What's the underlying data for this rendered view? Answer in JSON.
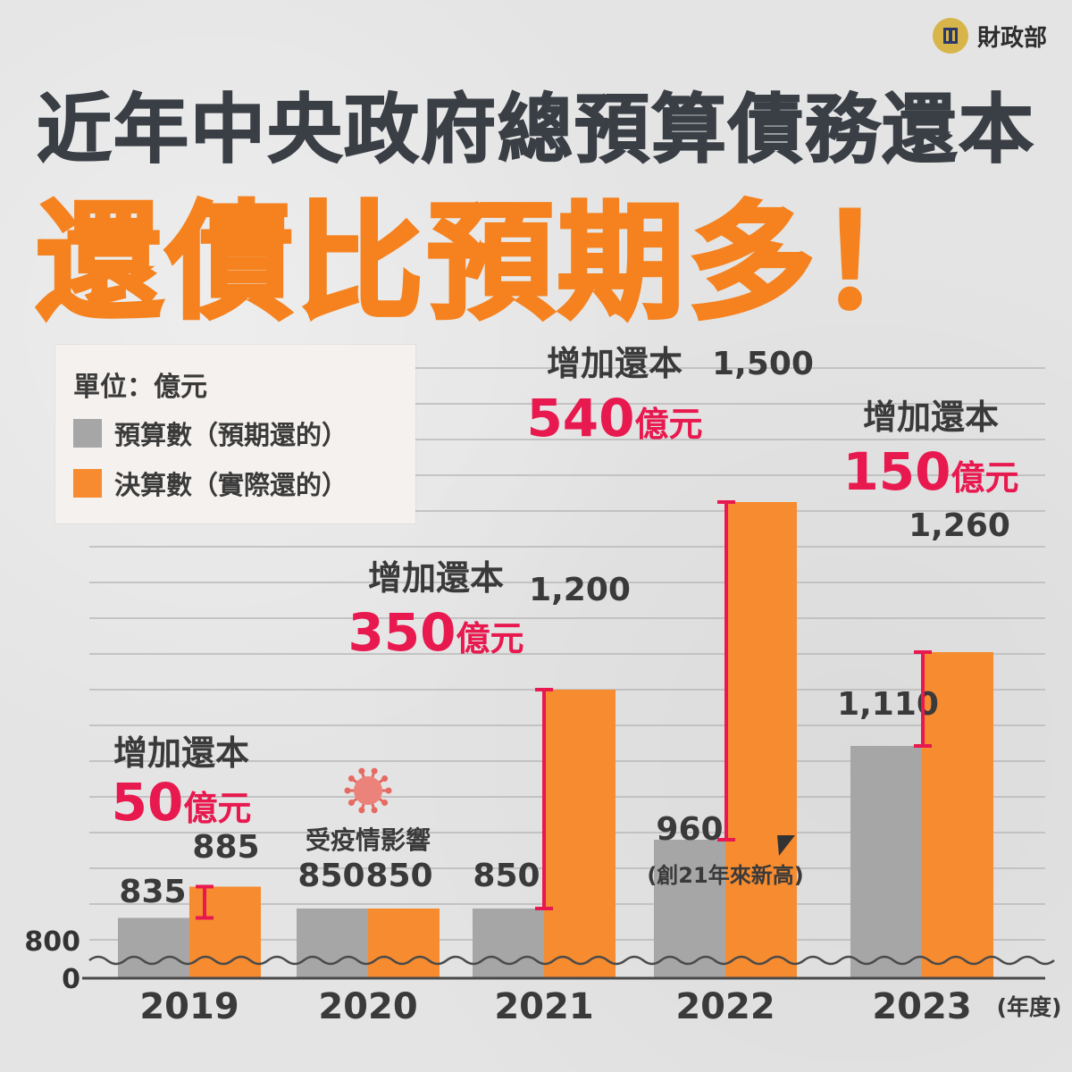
{
  "header": {
    "ministry": "財政部",
    "title": "近年中央政府總預算債務還本",
    "headline": "還債比預期多！"
  },
  "legend": {
    "unit": "單位：億元",
    "items": [
      {
        "label": "預算數（預期還的）",
        "color": "#a6a6a6"
      },
      {
        "label": "決算數（實際還的）",
        "color": "#f68b30"
      }
    ]
  },
  "colors": {
    "budget": "#a6a6a6",
    "actual": "#f68b30",
    "accent": "#f5821f",
    "highlight": "#e8194f",
    "axis": "#4a4a4a"
  },
  "chart_data": {
    "type": "bar",
    "categories": [
      "2019",
      "2020",
      "2021",
      "2022",
      "2023"
    ],
    "x_unit": "(年度)",
    "y_ticks": [
      "0",
      "800"
    ],
    "axis_break": true,
    "series": [
      {
        "name": "預算數（預期還的）",
        "values": [
          835,
          850,
          850,
          960,
          1110
        ],
        "labels": [
          "835",
          "850",
          "850",
          "960",
          "1,110"
        ]
      },
      {
        "name": "決算數（實際還的）",
        "values": [
          885,
          850,
          1200,
          1500,
          1260
        ],
        "labels": [
          "885",
          "850",
          "1,200",
          "1,500",
          "1,260"
        ]
      }
    ],
    "annotations": [
      {
        "year": "2019",
        "title": "增加還本",
        "amount": "50",
        "unit": "億元"
      },
      {
        "year": "2020",
        "note": "受疫情影響",
        "icon": "virus-icon"
      },
      {
        "year": "2021",
        "title": "增加還本",
        "amount": "350",
        "unit": "億元"
      },
      {
        "year": "2022",
        "title": "增加還本",
        "amount": "540",
        "unit": "億元",
        "note": "(創21年來新高)"
      },
      {
        "year": "2023",
        "title": "增加還本",
        "amount": "150",
        "unit": "億元"
      }
    ]
  }
}
